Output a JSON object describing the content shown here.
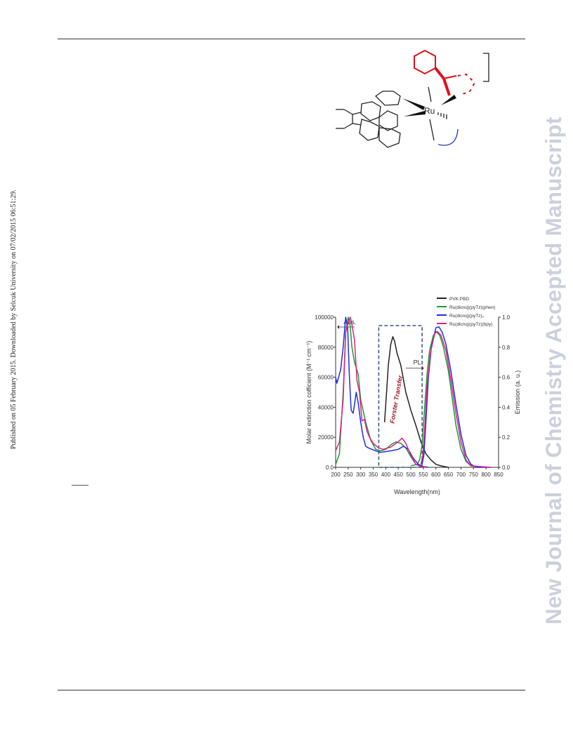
{
  "side_stamp": "Published on 05 February 2015. Downloaded by Selcuk University on 07/02/2015 06:51:29.",
  "watermark": "New Journal of Chemistry Accepted Manuscript",
  "structure": {
    "metal_label": "Ru",
    "colors": {
      "bonds": "#222222",
      "highlight": "#e0101a",
      "arc": "#2a3fb0"
    }
  },
  "chart_data": {
    "type": "line",
    "xlabel": "Wavelength(nm)",
    "ylabel": "Molar extinction cofficient (M⁻¹ cm⁻¹)",
    "y2label": "Emission (a. u.)",
    "xlim": [
      200,
      850
    ],
    "ylim": [
      0,
      100000
    ],
    "y2lim": [
      0,
      1.0
    ],
    "xticks": [
      "200",
      "250",
      "300",
      "350",
      "400",
      "450",
      "500",
      "550",
      "600",
      "650",
      "700",
      "750",
      "800",
      "850"
    ],
    "yticks": [
      "0.0",
      "20000",
      "40000",
      "60000",
      "80000",
      "100000"
    ],
    "y2ticks": [
      "0.0",
      "0.2",
      "0.4",
      "0.6",
      "0.8",
      "1.0"
    ],
    "annotations": {
      "abs": "Abs.",
      "pl": "PL",
      "transfer": "Forster Transfer"
    },
    "legend": [
      {
        "label": "PVK:PBD",
        "color": "#222222"
      },
      {
        "label": "Ru(dicnq)(pyTz)(phen)",
        "color": "#1e9a2e"
      },
      {
        "label": "Ru(dicnq)(pyTz)₂",
        "color": "#1f2ee0"
      },
      {
        "label": "Ru(dicnq)(pyTz)(bpy)",
        "color": "#e0208a"
      }
    ],
    "series": [
      {
        "name": "PVK:PBD",
        "axis": "y2",
        "color": "#222222",
        "points": [
          [
            395,
            0.3
          ],
          [
            400,
            0.42
          ],
          [
            410,
            0.68
          ],
          [
            420,
            0.82
          ],
          [
            428,
            0.87
          ],
          [
            435,
            0.84
          ],
          [
            445,
            0.76
          ],
          [
            460,
            0.68
          ],
          [
            480,
            0.5
          ],
          [
            500,
            0.38
          ],
          [
            520,
            0.28
          ],
          [
            540,
            0.17
          ],
          [
            560,
            0.09
          ],
          [
            580,
            0.05
          ],
          [
            600,
            0.02
          ],
          [
            620,
            0.01
          ],
          [
            650,
            0.0
          ]
        ]
      },
      {
        "name": "Ru(dicnq)(pyTz)(phen)",
        "axis": "y",
        "color": "#1e9a2e",
        "points": [
          [
            200,
            2000
          ],
          [
            215,
            9000
          ],
          [
            230,
            50000
          ],
          [
            240,
            90000
          ],
          [
            250,
            100000
          ],
          [
            258,
            94000
          ],
          [
            265,
            80000
          ],
          [
            275,
            70000
          ],
          [
            290,
            62000
          ],
          [
            300,
            45000
          ],
          [
            320,
            30000
          ],
          [
            340,
            18000
          ],
          [
            360,
            12000
          ],
          [
            380,
            11000
          ],
          [
            400,
            12000
          ],
          [
            420,
            15000
          ],
          [
            440,
            17000
          ],
          [
            460,
            16000
          ],
          [
            480,
            13000
          ],
          [
            500,
            7000
          ],
          [
            520,
            2000
          ],
          [
            540,
            500
          ],
          [
            560,
            0
          ]
        ]
      },
      {
        "name": "Ru(dicnq)(pyTz)(phen) PL",
        "axis": "y2",
        "color": "#1e9a2e",
        "points": [
          [
            500,
            0.01
          ],
          [
            525,
            0.02
          ],
          [
            535,
            0.05
          ],
          [
            545,
            0.15
          ],
          [
            555,
            0.4
          ],
          [
            565,
            0.63
          ],
          [
            575,
            0.78
          ],
          [
            590,
            0.88
          ],
          [
            600,
            0.905
          ],
          [
            615,
            0.88
          ],
          [
            630,
            0.8
          ],
          [
            650,
            0.64
          ],
          [
            665,
            0.46
          ],
          [
            680,
            0.28
          ],
          [
            700,
            0.12
          ],
          [
            720,
            0.04
          ],
          [
            740,
            0.01
          ],
          [
            800,
            0.0
          ]
        ]
      },
      {
        "name": "Ru(dicnq)(pyTz)₂",
        "axis": "y",
        "color": "#1f2ee0",
        "points": [
          [
            200,
            60000
          ],
          [
            205,
            56000
          ],
          [
            210,
            59000
          ],
          [
            220,
            65000
          ],
          [
            230,
            80000
          ],
          [
            240,
            100000
          ],
          [
            248,
            93000
          ],
          [
            255,
            60000
          ],
          [
            262,
            38000
          ],
          [
            270,
            36000
          ],
          [
            282,
            50000
          ],
          [
            290,
            43000
          ],
          [
            300,
            30000
          ],
          [
            310,
            20000
          ],
          [
            320,
            14000
          ],
          [
            330,
            13000
          ],
          [
            360,
            11000
          ],
          [
            380,
            10000
          ],
          [
            420,
            11000
          ],
          [
            450,
            12000
          ],
          [
            470,
            14000
          ],
          [
            490,
            12000
          ],
          [
            510,
            6000
          ],
          [
            530,
            2000
          ],
          [
            550,
            500
          ],
          [
            570,
            0
          ]
        ]
      },
      {
        "name": "Ru(dicnq)(pyTz)₂ PL",
        "axis": "y2",
        "color": "#1f2ee0",
        "points": [
          [
            545,
            0.02
          ],
          [
            552,
            0.08
          ],
          [
            560,
            0.3
          ],
          [
            570,
            0.6
          ],
          [
            582,
            0.8
          ],
          [
            600,
            0.93
          ],
          [
            612,
            0.935
          ],
          [
            625,
            0.9
          ],
          [
            640,
            0.82
          ],
          [
            660,
            0.64
          ],
          [
            680,
            0.42
          ],
          [
            700,
            0.22
          ],
          [
            720,
            0.08
          ],
          [
            740,
            0.02
          ],
          [
            760,
            0.0
          ],
          [
            820,
            0.0
          ]
        ]
      },
      {
        "name": "Ru(dicnq)(pyTz)(bpy)",
        "axis": "y",
        "color": "#e0208a",
        "points": [
          [
            200,
            11000
          ],
          [
            215,
            17000
          ],
          [
            230,
            45000
          ],
          [
            240,
            90000
          ],
          [
            250,
            96000
          ],
          [
            258,
            100000
          ],
          [
            265,
            95000
          ],
          [
            275,
            85000
          ],
          [
            285,
            58000
          ],
          [
            295,
            50000
          ],
          [
            305,
            31000
          ],
          [
            315,
            32000
          ],
          [
            325,
            24000
          ],
          [
            335,
            20000
          ],
          [
            350,
            16000
          ],
          [
            370,
            13000
          ],
          [
            390,
            12000
          ],
          [
            420,
            13500
          ],
          [
            450,
            17000
          ],
          [
            465,
            19500
          ],
          [
            480,
            16000
          ],
          [
            500,
            8000
          ],
          [
            520,
            2000
          ],
          [
            540,
            500
          ],
          [
            560,
            0
          ]
        ]
      },
      {
        "name": "Ru(dicnq)(pyTz)(bpy) PL",
        "axis": "y2",
        "color": "#e0208a",
        "points": [
          [
            540,
            0.02
          ],
          [
            548,
            0.08
          ],
          [
            556,
            0.28
          ],
          [
            565,
            0.55
          ],
          [
            578,
            0.76
          ],
          [
            595,
            0.89
          ],
          [
            605,
            0.905
          ],
          [
            620,
            0.88
          ],
          [
            640,
            0.78
          ],
          [
            660,
            0.58
          ],
          [
            680,
            0.36
          ],
          [
            700,
            0.17
          ],
          [
            720,
            0.05
          ],
          [
            740,
            0.01
          ],
          [
            820,
            0.0
          ]
        ]
      }
    ]
  }
}
